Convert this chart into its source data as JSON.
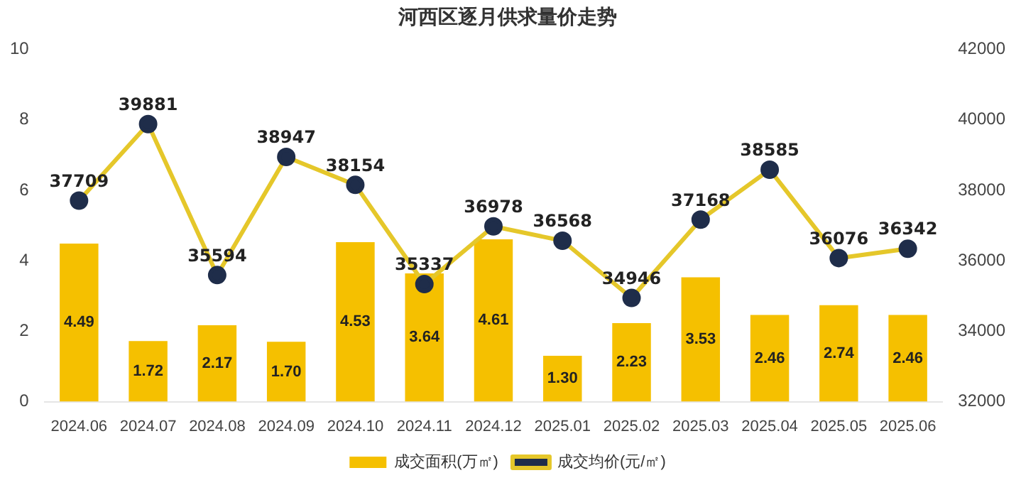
{
  "chart_data": {
    "type": "bar",
    "title": "河西区逐月供求量价走势",
    "categories": [
      "2024.06",
      "2024.07",
      "2024.08",
      "2024.09",
      "2024.10",
      "2024.11",
      "2024.12",
      "2025.01",
      "2025.02",
      "2025.03",
      "2025.04",
      "2025.05",
      "2025.06"
    ],
    "series": [
      {
        "name": "成交面积(万㎡)",
        "color": "#f5c000",
        "values": [
          4.49,
          1.72,
          2.17,
          1.7,
          4.53,
          3.64,
          4.61,
          1.3,
          2.23,
          3.53,
          2.46,
          2.74,
          2.46
        ],
        "value_labels": [
          "4.49",
          "1.72",
          "2.17",
          "1.70",
          "4.53",
          "3.64",
          "4.61",
          "1.30",
          "2.23",
          "3.53",
          "2.46",
          "2.74",
          "2.46"
        ]
      },
      {
        "name": "成交均价(元/㎡)",
        "type": "line",
        "axis": "y2",
        "color": "#e5c72a",
        "marker": "circle",
        "values": [
          37709,
          39881,
          35594,
          38947,
          38154,
          35337,
          36978,
          36568,
          34946,
          37168,
          38585,
          36076,
          36342
        ]
      }
    ],
    "ylim": [
      0,
      10
    ],
    "yticks": [
      0,
      2,
      4,
      6,
      8,
      10
    ],
    "y2lim": [
      32000,
      42000
    ],
    "y2ticks": [
      32000,
      34000,
      36000,
      38000,
      40000,
      42000
    ],
    "grid": false,
    "legend": "bottom",
    "data_labels": true
  }
}
